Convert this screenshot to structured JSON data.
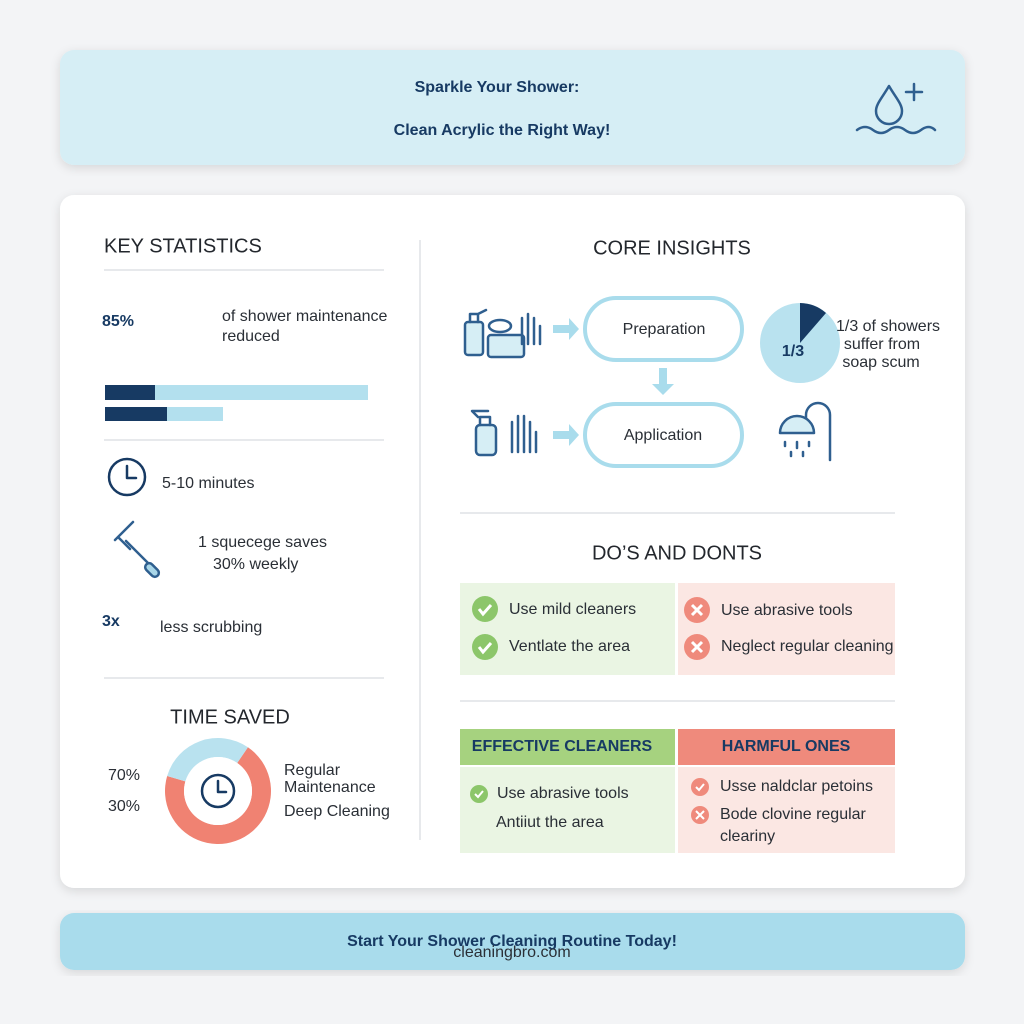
{
  "header": {
    "title_lines": [
      "Sparkle Your Shower:",
      "Clean Acrylic the Right Way!"
    ]
  },
  "key_statistics": {
    "heading": "KEY STATISTICS",
    "big_stat": "85%",
    "big_stat_text": [
      "of shower maintenance",
      "reduced"
    ],
    "time_stat": "5-10 minutes",
    "squeegee_stat": [
      "1 squecege saves",
      "30% weekly"
    ],
    "scrub_stat": "3x",
    "scrub_text": "less scrubbing"
  },
  "time_saved": {
    "heading": "TIME SAVED",
    "values": [
      {
        "value": 70,
        "label": "70%"
      },
      {
        "value": 30,
        "label": "30%"
      }
    ],
    "colors": [
      "#f08272",
      "#b9e2ef"
    ],
    "legend": [
      [
        "Regular",
        "Maintenance"
      ],
      [
        "Deep Cleaning"
      ]
    ]
  },
  "core_insights": {
    "heading": "CORE INSIGHTS",
    "steps": [
      "Preparation",
      "Application"
    ],
    "fraction": "1/3",
    "fraction_text": [
      "1/3 of showers",
      "suffer from",
      "soap scum"
    ]
  },
  "dos_and_donts": {
    "heading": "DO’S AND DONTS",
    "dos": [
      "Use mild cleaners",
      "Ventlate the area"
    ],
    "donts": [
      "Use abrasive tools",
      "Neglect regular cleaning"
    ]
  },
  "cleaners": {
    "effective_heading": "EFFECTIVE CLEANERS",
    "effective": [
      "Use abrasive tools",
      "Antiiut the area"
    ],
    "harmful_heading": "HARMFUL ONES",
    "harmful": [
      [
        "Usse naldclar petoins"
      ],
      [
        "Bode clovine regular",
        "clearіny"
      ]
    ]
  },
  "footer": {
    "text": "Start Your Shower Cleaning Routine Today!",
    "watermark": "cleaningbro.com"
  }
}
